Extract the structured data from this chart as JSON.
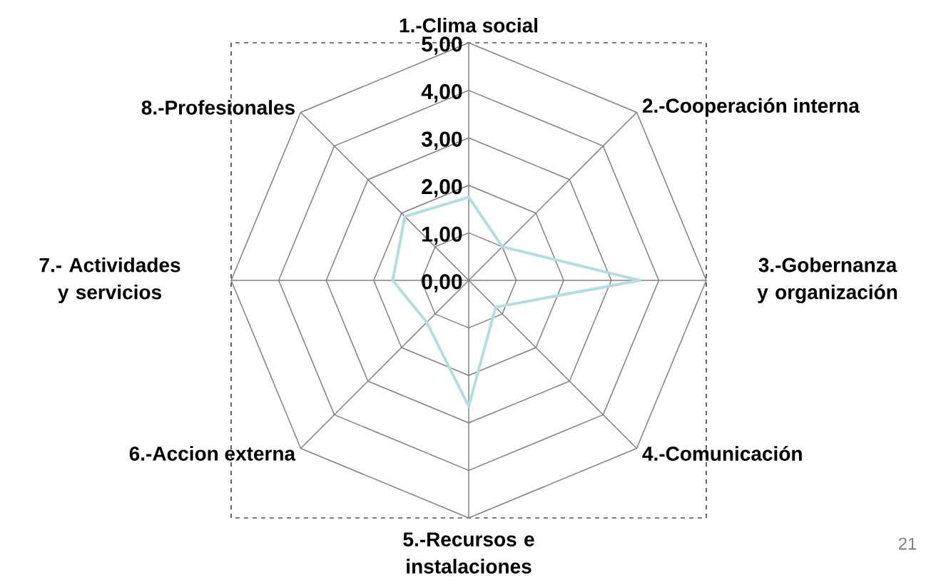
{
  "chart_data": {
    "type": "radar",
    "categories": [
      "1.-Clima social",
      "2.-Cooperación interna",
      "3.-Gobernanza y organización",
      "4.-Comunicación",
      "5.-Recursos e instalaciones",
      "6.-Accion externa",
      "7.- Actividades y servicios",
      "8.-Profesionales"
    ],
    "series": [
      {
        "color": "#b4dde0",
        "values": [
          1.75,
          1.0,
          3.6,
          0.8,
          2.65,
          1.25,
          1.6,
          1.9
        ]
      }
    ],
    "ylim": [
      0,
      5
    ],
    "yticks": [
      {
        "value": 0,
        "label": "0,00"
      },
      {
        "value": 1,
        "label": "1,00"
      },
      {
        "value": 2,
        "label": "2,00"
      },
      {
        "value": 3,
        "label": "3,00"
      },
      {
        "value": 4,
        "label": "4,00"
      },
      {
        "value": 5,
        "label": "5,00"
      }
    ],
    "annotations": [
      "21"
    ]
  }
}
